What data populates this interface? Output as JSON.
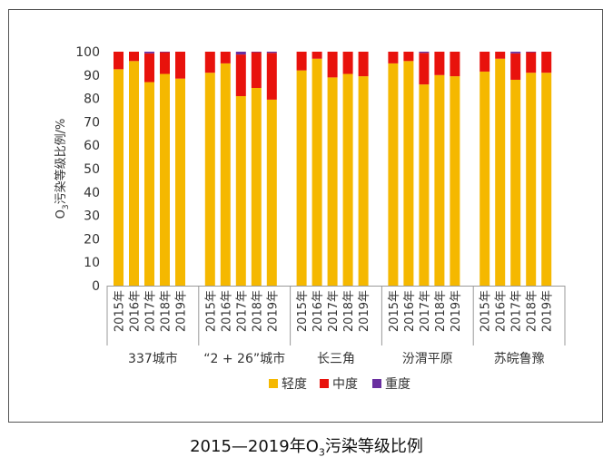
{
  "caption": {
    "prefix": "2015—2019年O",
    "sub": "3",
    "suffix": "污染等级比例"
  },
  "chart_data": {
    "type": "bar",
    "stacked": true,
    "ylabel_prefix": "O",
    "ylabel_sub": "3",
    "ylabel_suffix": "污染等级比例/%",
    "ylim": [
      0,
      100
    ],
    "yticks": [
      0,
      10,
      20,
      30,
      40,
      50,
      60,
      70,
      80,
      90,
      100
    ],
    "years": [
      "2015年",
      "2016年",
      "2017年",
      "2018年",
      "2019年"
    ],
    "groups": [
      "337城市",
      "“2 + 26”城市",
      "长三角",
      "汾渭平原",
      "苏皖鲁豫"
    ],
    "legend": [
      {
        "name": "轻度",
        "color": "#F5B800"
      },
      {
        "name": "中度",
        "color": "#E8120C"
      },
      {
        "name": "重度",
        "color": "#6A2FA0"
      }
    ],
    "series": [
      {
        "name": "轻度",
        "values": [
          [
            92.5,
            96,
            87,
            90.5,
            88.5
          ],
          [
            91,
            95,
            81,
            84.5,
            79.5
          ],
          [
            92,
            97,
            89,
            90.5,
            89.5
          ],
          [
            95,
            96,
            86,
            90,
            89.5
          ],
          [
            91.5,
            97,
            88,
            91,
            91
          ]
        ]
      },
      {
        "name": "中度",
        "values": [
          [
            7.5,
            4,
            12.3,
            9.3,
            11.5
          ],
          [
            9,
            5,
            17.8,
            15.3,
            20
          ],
          [
            8,
            3,
            11,
            9.5,
            10.5
          ],
          [
            5,
            4,
            13.5,
            10,
            10.5
          ],
          [
            8.5,
            3,
            11.3,
            8.9,
            9
          ]
        ]
      },
      {
        "name": "重度",
        "values": [
          [
            0,
            0,
            0.7,
            0.2,
            0
          ],
          [
            0,
            0,
            1.2,
            0.2,
            0.5
          ],
          [
            0,
            0,
            0,
            0,
            0
          ],
          [
            0,
            0,
            0.5,
            0,
            0
          ],
          [
            0,
            0,
            0.7,
            0.1,
            0
          ]
        ]
      }
    ]
  }
}
